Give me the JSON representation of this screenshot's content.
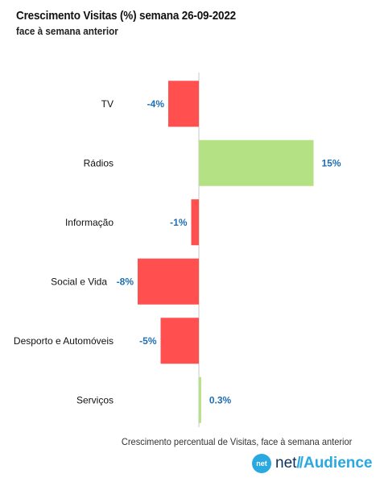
{
  "header": {
    "title": "Crescimento Visitas (%) semana 26-09-2022",
    "subtitle": "face à semana anterior"
  },
  "chart_data": {
    "type": "bar",
    "orientation": "horizontal",
    "categories": [
      "TV",
      "Rádios",
      "Informação",
      "Social e Vida",
      "Desporto e Automóveis",
      "Serviços"
    ],
    "values": [
      -4,
      15,
      -1,
      -8,
      -5,
      0.3
    ],
    "data_labels": [
      "-4%",
      "15%",
      "-1%",
      "-8%",
      "-5%",
      "0.3%"
    ],
    "xlim": [
      -8,
      15
    ],
    "colors": {
      "negative": "#ff4f4f",
      "positive": "#b3e183",
      "label": "#1f6fb2",
      "axis": "#c8c8c8"
    },
    "grid": false,
    "legend": "none"
  },
  "footnote": "Crescimento percentual de Visitas, face à semana anterior",
  "brand": {
    "badge": "net",
    "prefix": "net",
    "slash": "//",
    "name": "Audience"
  }
}
